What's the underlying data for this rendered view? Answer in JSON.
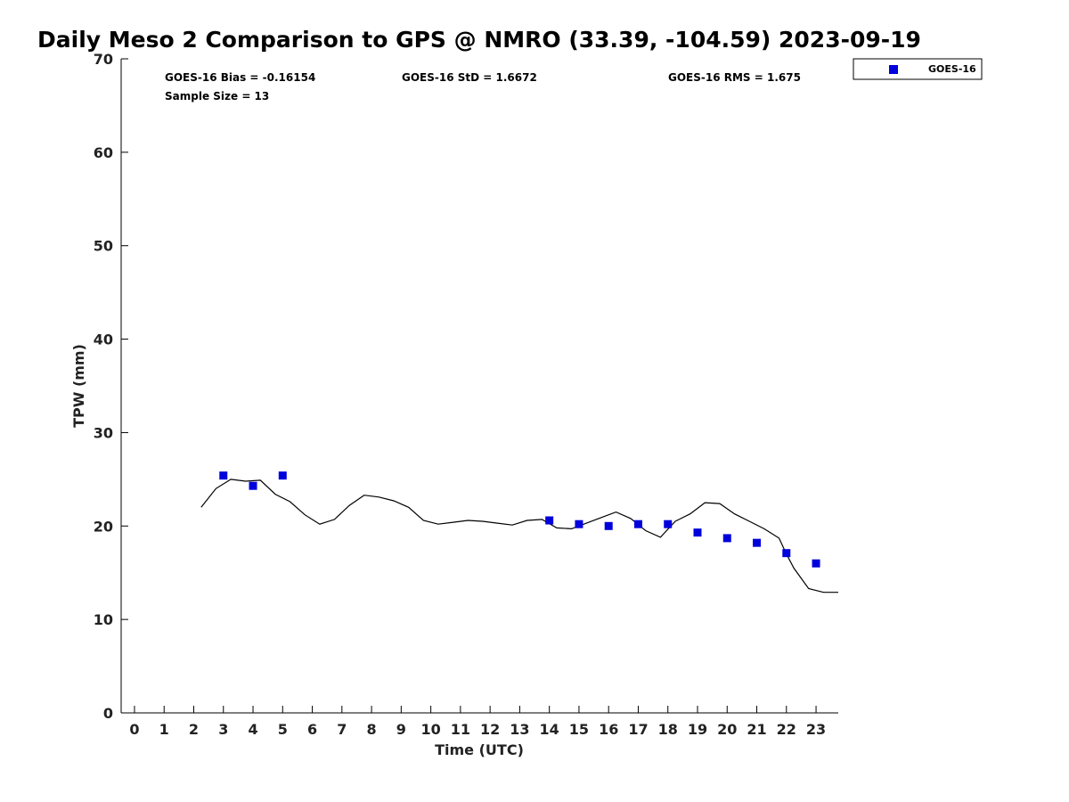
{
  "chart_data": {
    "type": "scatter",
    "title": "Daily Meso 2 Comparison to GPS @ NMRO (33.39, -104.59) 2023-09-19",
    "xlabel": "Time (UTC)",
    "ylabel": "TPW (mm)",
    "xlim": [
      -0.45,
      23.75
    ],
    "ylim": [
      0,
      70
    ],
    "x_ticks": [
      0,
      1,
      2,
      3,
      4,
      5,
      6,
      7,
      8,
      9,
      10,
      11,
      12,
      13,
      14,
      15,
      16,
      17,
      18,
      19,
      20,
      21,
      22,
      23
    ],
    "y_ticks": [
      0,
      10,
      20,
      30,
      40,
      50,
      60,
      70
    ],
    "grid": false,
    "legend_position": "top-right outside",
    "stats": {
      "bias": "GOES-16 Bias = -0.16154",
      "std": "GOES-16 StD = 1.6672",
      "rms": "GOES-16 RMS = 1.675",
      "sample_size": "Sample Size = 13"
    },
    "series": [
      {
        "name": "GOES-16",
        "kind": "scatter",
        "marker": "square",
        "color": "#0000dd",
        "x": [
          3,
          4,
          5,
          14,
          15,
          16,
          17,
          18,
          19,
          20,
          21,
          22,
          23
        ],
        "y": [
          25.4,
          24.3,
          25.4,
          20.6,
          20.2,
          20.0,
          20.2,
          20.2,
          19.3,
          18.7,
          18.2,
          17.1,
          16.0
        ]
      },
      {
        "kind": "line",
        "color": "#000000",
        "x": [
          2.25,
          2.75,
          3.25,
          3.75,
          4.25,
          4.75,
          5.25,
          5.75,
          6.25,
          6.75,
          7.25,
          7.75,
          8.25,
          8.75,
          9.25,
          9.75,
          10.25,
          10.75,
          11.25,
          11.75,
          12.25,
          12.75,
          13.25,
          13.75,
          14.25,
          14.75,
          15.25,
          15.75,
          16.25,
          16.75,
          17.25,
          17.75,
          18.25,
          18.75,
          19.25,
          19.75,
          20.25,
          20.75,
          21.25,
          21.75,
          22.0,
          22.25,
          22.75,
          23.25,
          23.75
        ],
        "y": [
          22.0,
          24.0,
          25.0,
          24.8,
          24.9,
          23.4,
          22.6,
          21.2,
          20.2,
          20.7,
          22.2,
          23.3,
          23.1,
          22.7,
          22.0,
          20.6,
          20.2,
          20.4,
          20.6,
          20.5,
          20.3,
          20.1,
          20.6,
          20.7,
          19.8,
          19.7,
          20.3,
          20.9,
          21.5,
          20.8,
          19.5,
          18.8,
          20.5,
          21.3,
          22.5,
          22.4,
          21.3,
          20.5,
          19.7,
          18.7,
          17.0,
          15.5,
          13.3,
          12.9,
          12.9
        ]
      }
    ]
  }
}
